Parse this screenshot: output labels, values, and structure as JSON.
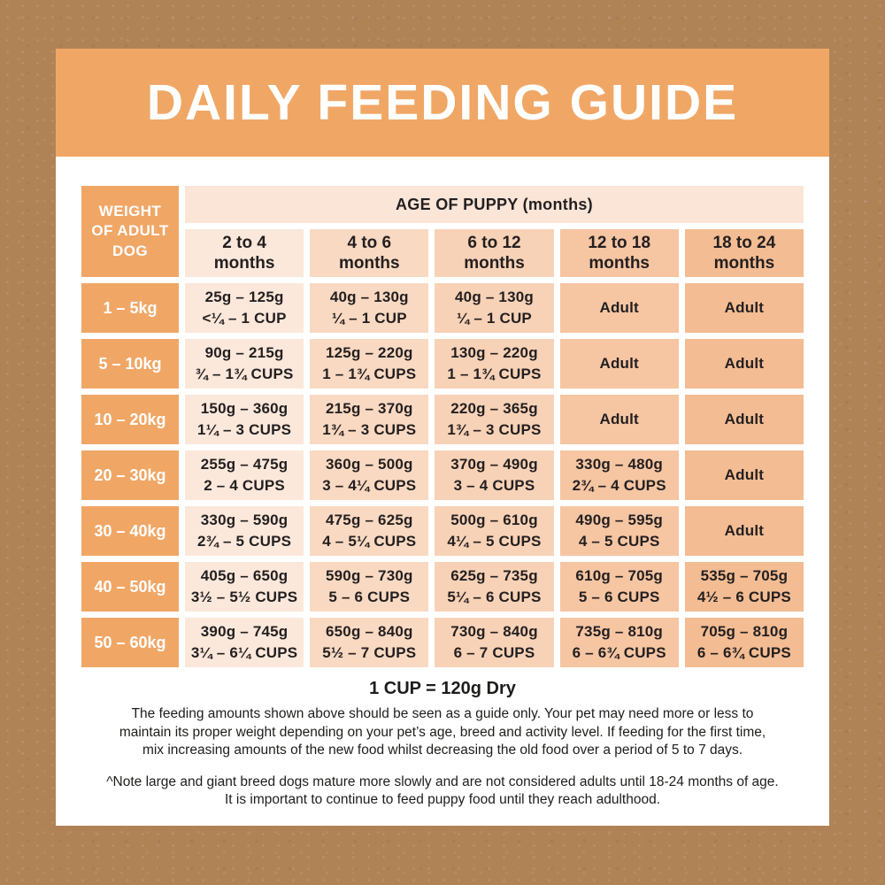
{
  "title": "DAILY FEEDING GUIDE",
  "colors": {
    "background_brown": "#b08357",
    "card_white": "#ffffff",
    "accent_orange": "#f0a766",
    "age_band_peach": "#fae5d7",
    "column_shades": [
      "#fbe8da",
      "#f9d9c1",
      "#f8d2b6",
      "#f6c5a2",
      "#f3bc92"
    ],
    "text_dark": "#231f20",
    "text_white": "#ffffff"
  },
  "table": {
    "corner_header": "WEIGHT OF ADULT DOG",
    "age_header": "AGE OF PUPPY (months)",
    "columns": [
      {
        "range": "2 to 4",
        "unit": "months"
      },
      {
        "range": "4 to 6",
        "unit": "months"
      },
      {
        "range": "6 to 12",
        "unit": "months"
      },
      {
        "range": "12 to 18",
        "unit": "months"
      },
      {
        "range": "18 to 24",
        "unit": "months"
      }
    ],
    "rows": [
      {
        "weight": "1 – 5kg",
        "cells": [
          {
            "line1": "25g – 125g",
            "line2": "<¼ – 1 CUP"
          },
          {
            "line1": "40g – 130g",
            "line2": "¼ – 1 CUP"
          },
          {
            "line1": "40g – 130g",
            "line2": "¼ – 1 CUP"
          },
          {
            "line1": "Adult",
            "line2": ""
          },
          {
            "line1": "Adult",
            "line2": ""
          }
        ]
      },
      {
        "weight": "5 – 10kg",
        "cells": [
          {
            "line1": "90g – 215g",
            "line2": "¾ – 1¾ CUPS"
          },
          {
            "line1": "125g – 220g",
            "line2": "1 – 1¾ CUPS"
          },
          {
            "line1": "130g – 220g",
            "line2": "1 – 1¾ CUPS"
          },
          {
            "line1": "Adult",
            "line2": ""
          },
          {
            "line1": "Adult",
            "line2": ""
          }
        ]
      },
      {
        "weight": "10 – 20kg",
        "cells": [
          {
            "line1": "150g – 360g",
            "line2": "1¼ – 3 CUPS"
          },
          {
            "line1": "215g – 370g",
            "line2": "1¾ – 3 CUPS"
          },
          {
            "line1": "220g – 365g",
            "line2": "1¾ – 3 CUPS"
          },
          {
            "line1": "Adult",
            "line2": ""
          },
          {
            "line1": "Adult",
            "line2": ""
          }
        ]
      },
      {
        "weight": "20 – 30kg",
        "cells": [
          {
            "line1": "255g – 475g",
            "line2": "2 – 4 CUPS"
          },
          {
            "line1": "360g – 500g",
            "line2": "3 – 4¼ CUPS"
          },
          {
            "line1": "370g – 490g",
            "line2": "3 – 4 CUPS"
          },
          {
            "line1": "330g – 480g",
            "line2": "2¾ – 4 CUPS"
          },
          {
            "line1": "Adult",
            "line2": ""
          }
        ]
      },
      {
        "weight": "30 – 40kg",
        "cells": [
          {
            "line1": "330g – 590g",
            "line2": "2¾ – 5 CUPS"
          },
          {
            "line1": "475g – 625g",
            "line2": "4 – 5¼ CUPS"
          },
          {
            "line1": "500g – 610g",
            "line2": "4¼ – 5 CUPS"
          },
          {
            "line1": "490g – 595g",
            "line2": "4 – 5 CUPS"
          },
          {
            "line1": "Adult",
            "line2": ""
          }
        ]
      },
      {
        "weight": "40 – 50kg",
        "cells": [
          {
            "line1": "405g – 650g",
            "line2": "3½ – 5½ CUPS"
          },
          {
            "line1": "590g – 730g",
            "line2": "5 – 6 CUPS"
          },
          {
            "line1": "625g – 735g",
            "line2": "5¼ – 6 CUPS"
          },
          {
            "line1": "610g – 705g",
            "line2": "5 – 6 CUPS"
          },
          {
            "line1": "535g – 705g",
            "line2": "4½ – 6 CUPS"
          }
        ]
      },
      {
        "weight": "50 – 60kg",
        "cells": [
          {
            "line1": "390g – 745g",
            "line2": "3¼ – 6¼ CUPS"
          },
          {
            "line1": "650g – 840g",
            "line2": "5½ – 7 CUPS"
          },
          {
            "line1": "730g – 840g",
            "line2": "6 – 7 CUPS"
          },
          {
            "line1": "735g – 810g",
            "line2": "6 – 6¾ CUPS"
          },
          {
            "line1": "705g – 810g",
            "line2": "6 – 6¾ CUPS"
          }
        ]
      }
    ]
  },
  "footer": {
    "cup_note": "1 CUP = 120g Dry",
    "guide_text": "The feeding amounts shown above should be seen as a guide only. Your pet may need more or less to\nmaintain its proper weight depending on your pet’s age, breed and activity level. If feeding for the first time,\nmix increasing amounts of the new food whilst decreasing the old food over a period of 5 to 7 days.",
    "note_text": "^Note large and giant breed dogs mature more slowly and are not considered adults until 18-24 months of age.\nIt is important to continue to feed puppy food until they reach adulthood."
  }
}
